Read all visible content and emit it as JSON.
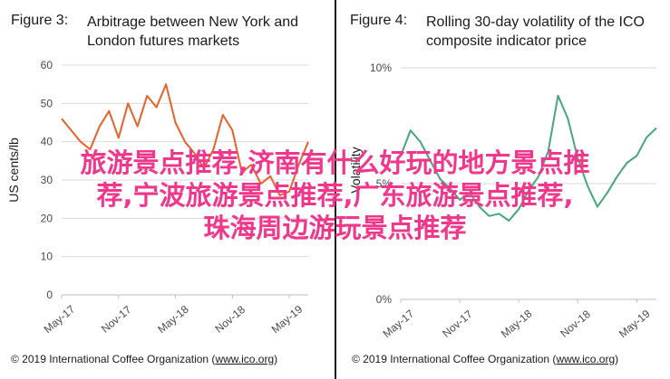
{
  "colors": {
    "accent_orange": "#e8612a",
    "accent_green": "#44a87b",
    "overlay_pink": "#f0378c",
    "grid": "#d9d9d9"
  },
  "overlay": {
    "line1": "旅游景点推荐,济南有什么好玩的地方景点推",
    "line2": "荐,宁波旅游景点推荐,广东旅游景点推荐,",
    "line3": "珠海周边游玩景点推荐"
  },
  "chart_data": [
    {
      "type": "line",
      "figure_label": "Figure 3:",
      "title": "Arbitrage between New York and London futures markets",
      "ylabel": "US cents/lb",
      "ylim": [
        0,
        60
      ],
      "yticks": [
        "0",
        "10",
        "20",
        "30",
        "40",
        "50",
        "60"
      ],
      "xticks": [
        "May-17",
        "Nov-17",
        "May-18",
        "Nov-18",
        "May-19"
      ],
      "xrange": [
        "2017-05",
        "2019-07"
      ],
      "grid": true,
      "series": [
        {
          "color": "#e8612a",
          "x": [
            "2017-05",
            "2017-06",
            "2017-07",
            "2017-08",
            "2017-09",
            "2017-10",
            "2017-11",
            "2017-12",
            "2018-01",
            "2018-02",
            "2018-03",
            "2018-04",
            "2018-05",
            "2018-06",
            "2018-07",
            "2018-08",
            "2018-09",
            "2018-10",
            "2018-11",
            "2018-12",
            "2019-01",
            "2019-02",
            "2019-03",
            "2019-04",
            "2019-05",
            "2019-06",
            "2019-07"
          ],
          "values": [
            46,
            43,
            40,
            38,
            44,
            48,
            41,
            50,
            44,
            52,
            49,
            55,
            45,
            40,
            37,
            33,
            38,
            47,
            43,
            32,
            34,
            29,
            31,
            26,
            27,
            34,
            40
          ]
        }
      ],
      "source_prefix": "© 2019 International Coffee Organization (",
      "source_url": "www.ico.org",
      "source_suffix": ")"
    },
    {
      "type": "line",
      "figure_label": "Figure 4:",
      "title": "Rolling 30-day volatility of the ICO composite indicator price",
      "ylabel": "Volatility",
      "ylim": [
        0,
        10
      ],
      "yticks": [
        "0%",
        "5%",
        "10%"
      ],
      "xticks": [
        "May-17",
        "Nov-17",
        "May-18",
        "Nov-18",
        "May-19"
      ],
      "xrange": [
        "2017-05",
        "2019-07"
      ],
      "grid": true,
      "series": [
        {
          "color": "#44a87b",
          "x": [
            "2017-05",
            "2017-06",
            "2017-07",
            "2017-08",
            "2017-09",
            "2017-10",
            "2017-11",
            "2017-12",
            "2018-01",
            "2018-02",
            "2018-03",
            "2018-04",
            "2018-05",
            "2018-06",
            "2018-07",
            "2018-08",
            "2018-09",
            "2018-10",
            "2018-11",
            "2018-12",
            "2019-01",
            "2019-02",
            "2019-03",
            "2019-04",
            "2019-05",
            "2019-06",
            "2019-07"
          ],
          "values": [
            6.2,
            7.3,
            6.8,
            6.0,
            5.2,
            4.8,
            4.3,
            4.6,
            4.0,
            3.6,
            3.7,
            3.4,
            3.9,
            4.7,
            5.3,
            6.4,
            8.8,
            7.8,
            6.1,
            4.9,
            4.0,
            4.6,
            5.3,
            5.9,
            6.2,
            7.0,
            7.4
          ]
        }
      ],
      "source_prefix": "© 2019 International Coffee Organization (",
      "source_url": "www.ico.org",
      "source_suffix": ")"
    }
  ]
}
